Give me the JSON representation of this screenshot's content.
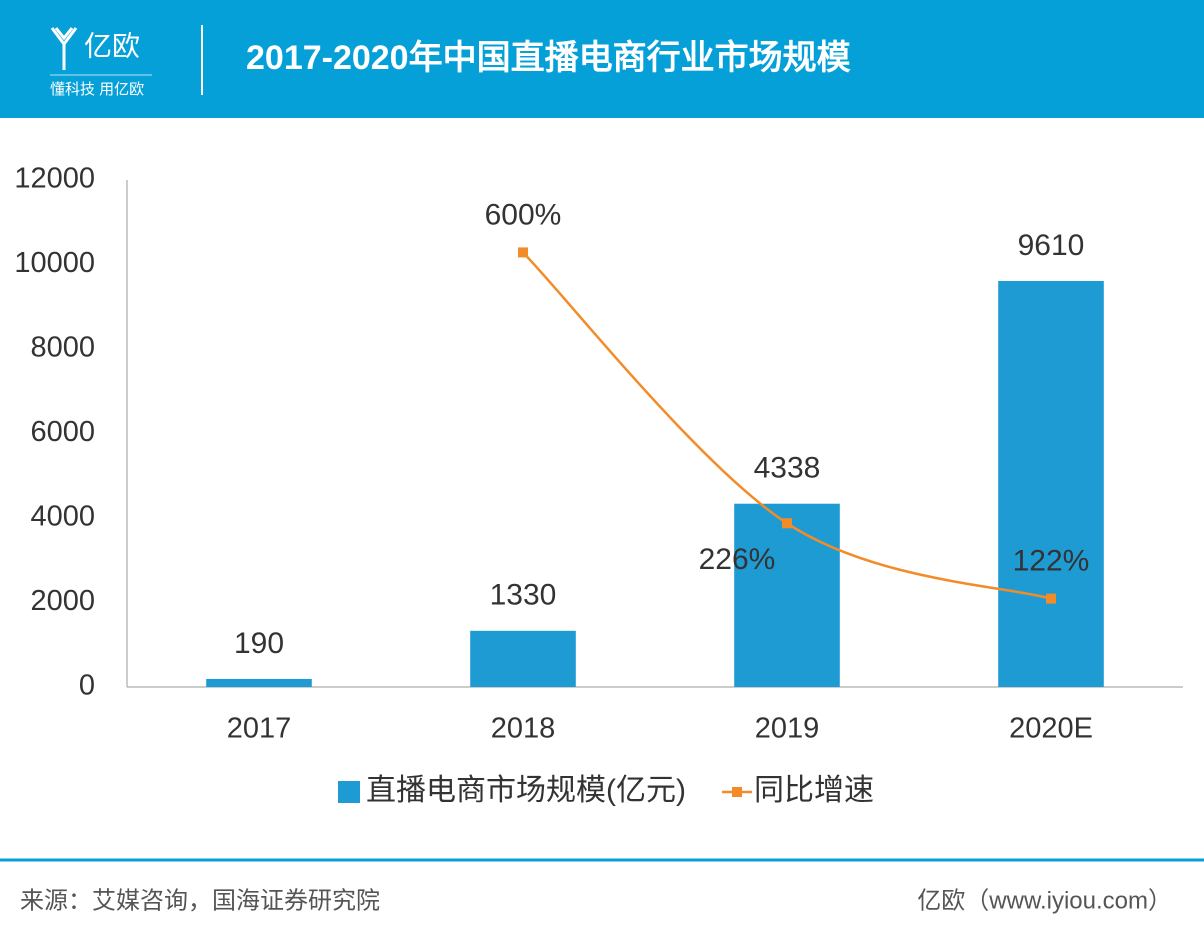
{
  "header": {
    "logo_text": "亿欧",
    "slogan": "懂科技 用亿欧",
    "title": "2017-2020年中国直播电商行业市场规模"
  },
  "chart_data": {
    "type": "bar",
    "categories": [
      "2017",
      "2018",
      "2019",
      "2020E"
    ],
    "series": [
      {
        "name": "直播电商市场规模(亿元)",
        "type": "bar",
        "color": "#1f9bd3",
        "values": [
          190,
          1330,
          4338,
          9610
        ]
      },
      {
        "name": "同比增速",
        "type": "line",
        "axis": "y2",
        "color": "#f28c28",
        "values": [
          null,
          600,
          226,
          122
        ],
        "value_labels": [
          null,
          "600%",
          "226%",
          "122%"
        ]
      }
    ],
    "ylim": [
      0,
      12000
    ],
    "yticks": [
      0,
      2000,
      4000,
      6000,
      8000,
      10000,
      12000
    ],
    "y2lim": [
      0,
      700
    ],
    "grid": false,
    "legend": "bottom"
  },
  "footer": {
    "source": "来源：艾媒咨询，国海证券研究院",
    "site": "亿欧（www.iyiou.com）"
  }
}
